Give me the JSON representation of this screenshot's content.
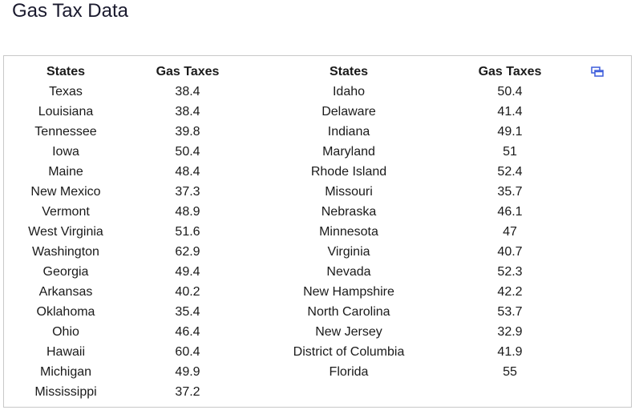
{
  "page": {
    "title": "Gas Tax Data"
  },
  "table": {
    "headers": [
      "States",
      "Gas Taxes",
      "States",
      "Gas Taxes"
    ],
    "left": [
      {
        "state": "Texas",
        "tax": "38.4"
      },
      {
        "state": "Louisiana",
        "tax": "38.4"
      },
      {
        "state": "Tennessee",
        "tax": "39.8"
      },
      {
        "state": "Iowa",
        "tax": "50.4"
      },
      {
        "state": "Maine",
        "tax": "48.4"
      },
      {
        "state": "New Mexico",
        "tax": "37.3"
      },
      {
        "state": "Vermont",
        "tax": "48.9"
      },
      {
        "state": "West Virginia",
        "tax": "51.6"
      },
      {
        "state": "Washington",
        "tax": "62.9"
      },
      {
        "state": "Georgia",
        "tax": "49.4"
      },
      {
        "state": "Arkansas",
        "tax": "40.2"
      },
      {
        "state": "Oklahoma",
        "tax": "35.4"
      },
      {
        "state": "Ohio",
        "tax": "46.4"
      },
      {
        "state": "Hawaii",
        "tax": "60.4"
      },
      {
        "state": "Michigan",
        "tax": "49.9"
      },
      {
        "state": "Mississippi",
        "tax": "37.2"
      }
    ],
    "right": [
      {
        "state": "Idaho",
        "tax": "50.4"
      },
      {
        "state": "Delaware",
        "tax": "41.4"
      },
      {
        "state": "Indiana",
        "tax": "49.1"
      },
      {
        "state": "Maryland",
        "tax": "51"
      },
      {
        "state": "Rhode Island",
        "tax": "52.4"
      },
      {
        "state": "Missouri",
        "tax": "35.7"
      },
      {
        "state": "Nebraska",
        "tax": "46.1"
      },
      {
        "state": "Minnesota",
        "tax": "47"
      },
      {
        "state": "Virginia",
        "tax": "40.7"
      },
      {
        "state": "Nevada",
        "tax": "52.3"
      },
      {
        "state": "New Hampshire",
        "tax": "42.2"
      },
      {
        "state": "North Carolina",
        "tax": "53.7"
      },
      {
        "state": "New Jersey",
        "tax": "32.9"
      },
      {
        "state": "District of Columbia",
        "tax": "41.9"
      },
      {
        "state": "Florida",
        "tax": "55"
      }
    ]
  },
  "icons": {
    "popout": "popout-window-icon"
  },
  "colors": {
    "icon_accent": "#3b5bdb",
    "border": "#c8c8c8",
    "title": "#1a1a2e"
  }
}
